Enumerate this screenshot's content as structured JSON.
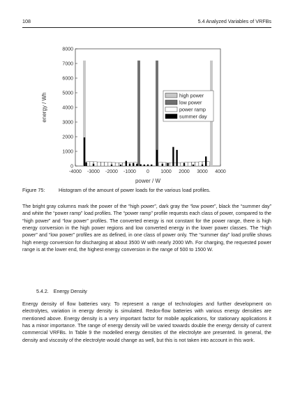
{
  "header": {
    "page_number": "108",
    "running_title": "5.4 Analyzed Variables of VRFBs"
  },
  "figure": {
    "label": "Figure 75:",
    "caption": "Histogram of the amount of power loads for the various load profiles."
  },
  "chart_data": {
    "type": "bar",
    "xlabel": "power / W",
    "ylabel": "energy / Wh",
    "xlim": [
      -4000,
      4000
    ],
    "ylim": [
      0,
      8000
    ],
    "xticks": [
      "-4000",
      "-3000",
      "-2000",
      "-1000",
      "0",
      "1000",
      "2000",
      "3000",
      "4000"
    ],
    "yticks": [
      "0",
      "1000",
      "2000",
      "3000",
      "4000",
      "5000",
      "6000",
      "7000",
      "8000"
    ],
    "grid": false,
    "legend_position": "right",
    "series": [
      {
        "name": "high power",
        "color": "#c8c8c8",
        "points": [
          [
            -3500,
            7200
          ],
          [
            3500,
            7200
          ]
        ]
      },
      {
        "name": "low power",
        "color": "#707070",
        "points": [
          [
            -500,
            7200
          ],
          [
            500,
            7200
          ]
        ]
      },
      {
        "name": "power ramp",
        "color": "#ffffff",
        "points": [
          [
            -3300,
            300
          ],
          [
            -3100,
            300
          ],
          [
            -2900,
            290
          ],
          [
            -2700,
            280
          ],
          [
            -2500,
            270
          ],
          [
            -2300,
            260
          ],
          [
            -2100,
            250
          ],
          [
            -1900,
            240
          ],
          [
            -1700,
            230
          ],
          [
            -1500,
            220
          ],
          [
            -1300,
            220
          ],
          [
            -1100,
            230
          ],
          [
            -900,
            240
          ],
          [
            -700,
            250
          ],
          [
            700,
            250
          ],
          [
            900,
            240
          ],
          [
            1100,
            230
          ],
          [
            1300,
            220
          ],
          [
            1500,
            220
          ],
          [
            1700,
            230
          ],
          [
            1900,
            240
          ],
          [
            2100,
            250
          ],
          [
            2300,
            260
          ],
          [
            2500,
            270
          ],
          [
            2700,
            280
          ],
          [
            2900,
            290
          ],
          [
            3100,
            300
          ],
          [
            3300,
            300
          ]
        ]
      },
      {
        "name": "summer day",
        "color": "#000000",
        "points": [
          [
            -3500,
            1950
          ],
          [
            -3400,
            250
          ],
          [
            -3000,
            150
          ],
          [
            -2000,
            100
          ],
          [
            -1500,
            100
          ],
          [
            -1200,
            350
          ],
          [
            -1000,
            150
          ],
          [
            -800,
            200
          ],
          [
            -600,
            150
          ],
          [
            -400,
            120
          ],
          [
            -200,
            100
          ],
          [
            0,
            100
          ],
          [
            200,
            100
          ],
          [
            500,
            1100
          ],
          [
            800,
            150
          ],
          [
            1100,
            200
          ],
          [
            1400,
            1300
          ],
          [
            1600,
            1100
          ],
          [
            2000,
            200
          ],
          [
            2500,
            100
          ],
          [
            3000,
            100
          ],
          [
            3200,
            650
          ]
        ]
      }
    ]
  },
  "paragraph1": "The bright gray columns mark the power of the “high power”, dark gray the “low power”, black the “summer day” and white the “power ramp” load profiles. The “power ramp” profile requests each class of power, compared to the “high power” and “low power” profiles. The converted energy is not constant for the power range, there is high energy conversion in the high power regions and low converted energy in the lower power classes. The “high power” and “low power” profiles are as defined, in one class of power only. The “summer day” load profile shows high energy conversion for discharging at about 3500 W with nearly 2000 Wh. For charging, the requested power range is at the lower end, the highest energy conversion in the range of 500 to 1500 W.",
  "section": {
    "number": "5.4.2.",
    "title": "Energy Density"
  },
  "paragraph2": "Energy density of flow batteries vary. To represent a range of technologies and further development on electrolytes, variation in energy density is simulated. Redox-flow batteries with various energy densities are mentioned above. Energy density is a very important factor for mobile applications, for stationary applications it has a minor importance. The range of energy density will be varied towards double the energy density of current commercial VRFBs. In Table 9 the modelled energy densities of the electrolyte are presented. In general, the density and viscosity of the electrolyte would change as well, but this is not taken into account in this work."
}
